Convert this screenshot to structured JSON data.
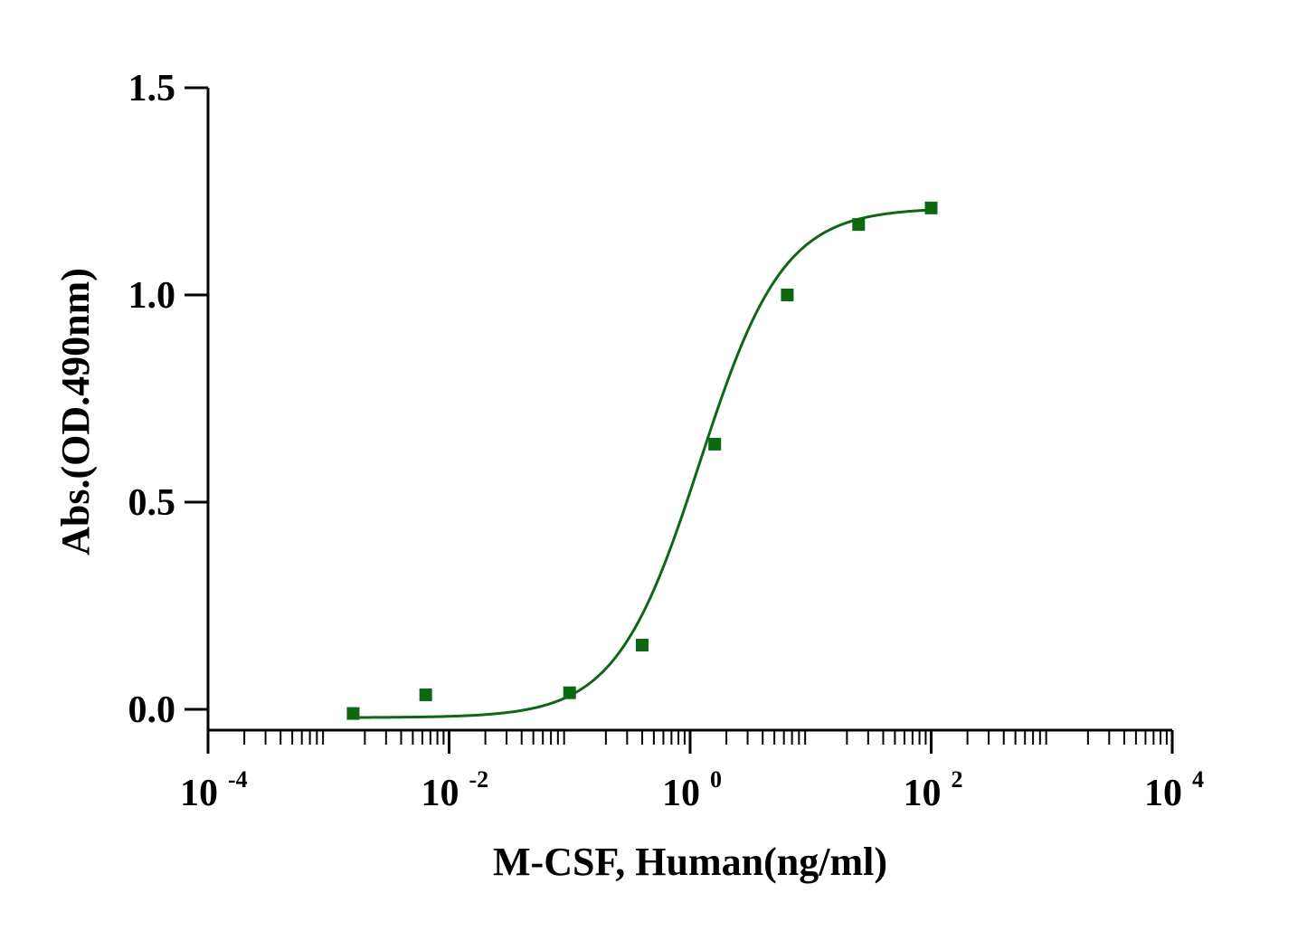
{
  "chart_data": {
    "type": "scatter",
    "title": "",
    "xlabel": "M-CSF, Human(ng/ml)",
    "ylabel": "Abs.(OD.490nm)",
    "x_scale": "log10",
    "xlim": [
      0.0001,
      10000
    ],
    "ylim": [
      -0.05,
      1.5
    ],
    "x_ticks": [
      {
        "value": 0.0001,
        "base": "10",
        "exp": "-4"
      },
      {
        "value": 0.01,
        "base": "10",
        "exp": "-2"
      },
      {
        "value": 1,
        "base": "10",
        "exp": "0"
      },
      {
        "value": 100,
        "base": "10",
        "exp": "2"
      },
      {
        "value": 10000,
        "base": "10",
        "exp": "4"
      }
    ],
    "y_ticks": [
      {
        "value": 0.0,
        "label": "0.0"
      },
      {
        "value": 0.5,
        "label": "0.5"
      },
      {
        "value": 1.0,
        "label": "1.0"
      },
      {
        "value": 1.5,
        "label": "1.5"
      }
    ],
    "grid": false,
    "legend": "none",
    "color": "#0b6a10",
    "series": [
      {
        "x": [
          0.0016,
          0.0064,
          0.1,
          0.4,
          1.6,
          6.4,
          25,
          100
        ],
        "y": [
          -0.01,
          0.035,
          0.04,
          0.155,
          0.64,
          1.0,
          1.17,
          1.21
        ]
      }
    ],
    "fit": {
      "model": "4PL",
      "bottom": -0.02,
      "top": 1.21,
      "ec50": 1.2,
      "hill": 1.25
    }
  }
}
